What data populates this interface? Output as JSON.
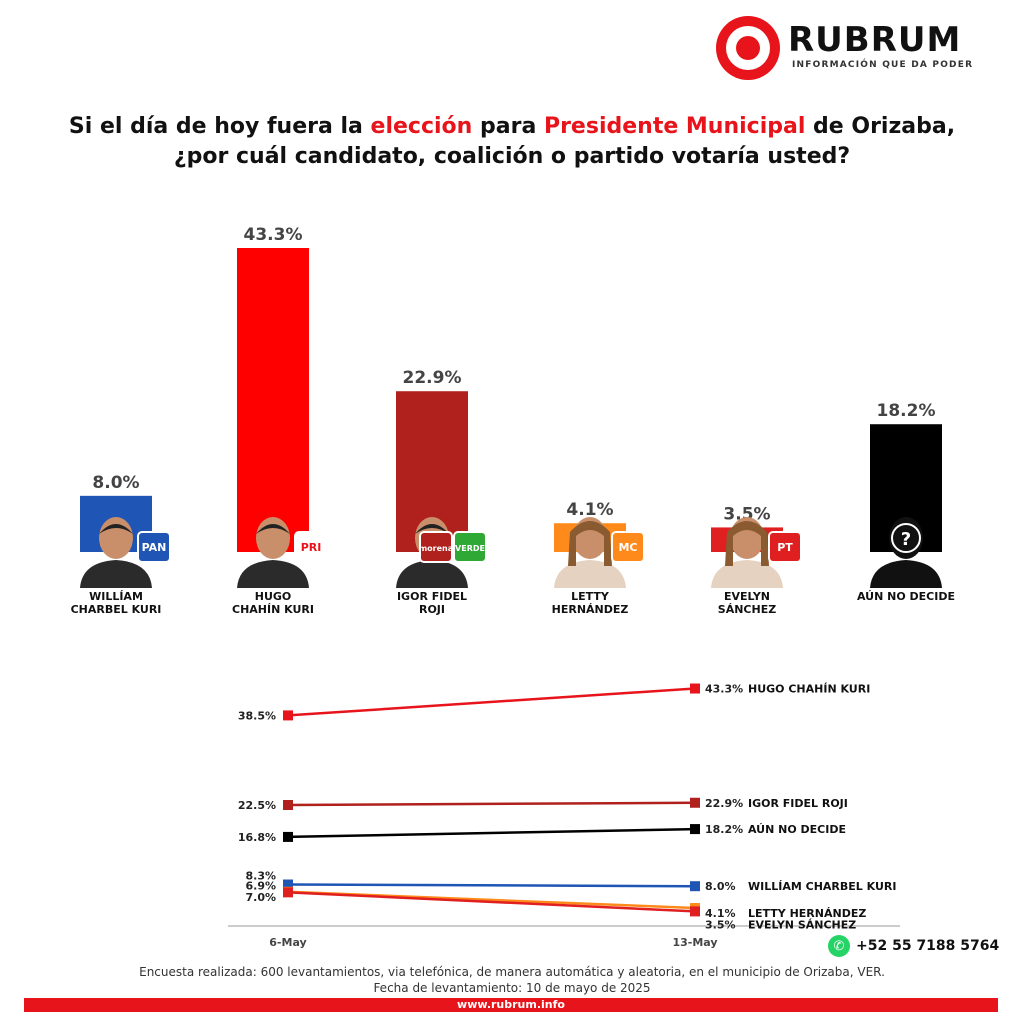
{
  "logo": {
    "name": "RUBRUM",
    "tagline": "INFORMACIÓN QUE DA PODER",
    "color": "#e8141b"
  },
  "title": {
    "part1": "Si el día de hoy fuera la ",
    "highlight1": "elección",
    "part2": " para ",
    "highlight2": "Presidente Municipal",
    "part3": " de Orizaba,",
    "line2": "¿por cuál candidato, coalición o partido votaría usted?"
  },
  "chart_data": [
    {
      "type": "bar",
      "categories": [
        "WILLÍAM CHARBEL KURI",
        "HUGO CHAHÍN KURI",
        "IGOR FIDEL ROJI",
        "LETTY HERNÁNDEZ",
        "EVELYN SÁNCHEZ",
        "AÚN NO DECIDE"
      ],
      "name_lines": [
        [
          "WILLÍAM",
          "CHARBEL KURI"
        ],
        [
          "HUGO",
          "CHAHÍN KURI"
        ],
        [
          "IGOR FIDEL",
          "ROJI"
        ],
        [
          "LETTY",
          "HERNÁNDEZ"
        ],
        [
          "EVELYN",
          "SÁNCHEZ"
        ],
        [
          "AÚN NO DECIDE"
        ]
      ],
      "values": [
        8.0,
        43.3,
        22.9,
        4.1,
        3.5,
        18.2
      ],
      "value_labels": [
        "8.0%",
        "43.3%",
        "22.9%",
        "4.1%",
        "3.5%",
        "18.2%"
      ],
      "colors": [
        "#1f55b4",
        "#ff0000",
        "#b0201c",
        "#ff8a1c",
        "#e02020",
        "#000000"
      ],
      "party_badges": [
        [
          "PAN"
        ],
        [
          "PRI"
        ],
        [
          "morena",
          "VERDE"
        ],
        [
          "MC"
        ],
        [
          "PT"
        ],
        []
      ],
      "badge_colors": [
        [
          "#1f55b4"
        ],
        [
          "#ffffff"
        ],
        [
          "#b0201c",
          "#2fa836"
        ],
        [
          "#ff8a1c"
        ],
        [
          "#e02020"
        ],
        []
      ]
    },
    {
      "type": "line",
      "x": [
        "6-May",
        "13-May"
      ],
      "series": [
        {
          "name": "HUGO CHAHÍN KURI",
          "values": [
            38.5,
            43.3
          ],
          "labels": [
            "38.5%",
            "43.3%"
          ],
          "color": "#e8141b"
        },
        {
          "name": "IGOR FIDEL ROJI",
          "values": [
            22.5,
            22.9
          ],
          "labels": [
            "22.5%",
            "22.9%"
          ],
          "color": "#b0201c"
        },
        {
          "name": "AÚN NO DECIDE",
          "values": [
            16.8,
            18.2
          ],
          "labels": [
            "16.8%",
            "18.2%"
          ],
          "color": "#000000"
        },
        {
          "name": "WILLÍAM CHARBEL KURI",
          "values": [
            8.3,
            8.0
          ],
          "labels": [
            "8.3%",
            "8.0%"
          ],
          "color": "#1f55b4"
        },
        {
          "name": "LETTY HERNÁNDEZ",
          "values": [
            7.0,
            4.1
          ],
          "labels": [
            "7.0%",
            "4.1%"
          ],
          "color": "#ff8a1c"
        },
        {
          "name": "EVELYN SÁNCHEZ",
          "values": [
            6.9,
            3.5
          ],
          "labels": [
            "6.9%",
            "3.5%"
          ],
          "color": "#e02020"
        }
      ],
      "ylim": [
        0,
        50
      ]
    }
  ],
  "footer": {
    "phone": "+52 55 7188 5764",
    "phone_icon": "whatsapp-icon",
    "methodology": "Encuesta realizada: 600 levantamientos, via telefónica, de manera automática y aleatoria, en el municipio de Orizaba, VER.",
    "date": "Fecha de levantamiento: 10 de mayo de 2025",
    "website": "www.rubrum.info"
  }
}
